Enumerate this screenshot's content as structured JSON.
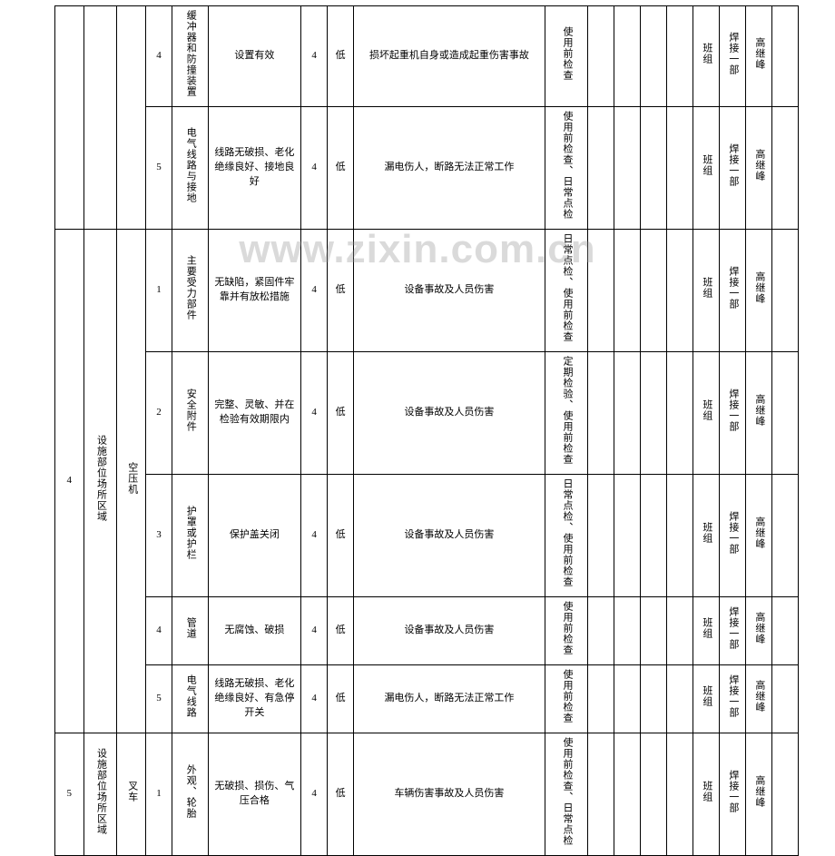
{
  "watermark": "www.zixin.com.cn",
  "rows": [
    {
      "c1": "",
      "c2": "",
      "c3": "",
      "c4": "4",
      "c5": "缓冲器和防撞装置",
      "c6": "设置有效",
      "c7": "4",
      "c8": "低",
      "c9": "损坏起重机自身或造成起重伤害事故",
      "c10": "使用前检查",
      "c11": "",
      "c12": "",
      "c13": "",
      "c14": "",
      "c15": "班组",
      "c16": "焊接一部",
      "c17": "高继峰",
      "c18": ""
    },
    {
      "c4": "5",
      "c5": "电气线路与接地",
      "c6": "线路无破损、老化绝缘良好、接地良好",
      "c7": "4",
      "c8": "低",
      "c9": "漏电伤人，断路无法正常工作",
      "c10": "使用前检查、日常点检",
      "c15": "班组",
      "c16": "焊接一部",
      "c17": "高继峰",
      "c18": ""
    },
    {
      "g1": "4",
      "g2": "设施部位场所区域",
      "g3": "空压机",
      "c4": "1",
      "c5": "主要受力部件",
      "c6": "无缺陷，紧固件牢靠并有放松措施",
      "c7": "4",
      "c8": "低",
      "c9": "设备事故及人员伤害",
      "c10": "日常点检、使用前检查",
      "c15": "班组",
      "c16": "焊接一部",
      "c17": "高继峰",
      "c18": ""
    },
    {
      "c4": "2",
      "c5": "安全附件",
      "c6": "完整、灵敏、并在检验有效期限内",
      "c7": "4",
      "c8": "低",
      "c9": "设备事故及人员伤害",
      "c10": "定期检验、使用前检查",
      "c15": "班组",
      "c16": "焊接一部",
      "c17": "高继峰",
      "c18": ""
    },
    {
      "c4": "3",
      "c5": "护罩或护栏",
      "c6": "保护盖关闭",
      "c7": "4",
      "c8": "低",
      "c9": "设备事故及人员伤害",
      "c10": "日常点检、使用前检查",
      "c15": "班组",
      "c16": "焊接一部",
      "c17": "高继峰",
      "c18": ""
    },
    {
      "c4": "4",
      "c5": "管道",
      "c6": "无腐蚀、破损",
      "c7": "4",
      "c8": "低",
      "c9": "设备事故及人员伤害",
      "c10": "使用前检查",
      "c15": "班组",
      "c16": "焊接一部",
      "c17": "高继峰",
      "c18": ""
    },
    {
      "c4": "5",
      "c5": "电气线路",
      "c6": "线路无破损、老化绝缘良好、有急停开关",
      "c7": "4",
      "c8": "低",
      "c9": "漏电伤人，断路无法正常工作",
      "c10": "使用前检查",
      "c15": "班组",
      "c16": "焊接一部",
      "c17": "高继峰",
      "c18": ""
    },
    {
      "g1": "5",
      "g2": "设施部位场所区域",
      "g3": "叉车",
      "c4": "1",
      "c5": "外观、轮胎",
      "c6": "无破损、损伤、气压合格",
      "c7": "4",
      "c8": "低",
      "c9": "车辆伤害事故及人员伤害",
      "c10": "使用前检查、日常点检",
      "c15": "班组",
      "c16": "焊接一部",
      "c17": "高继峰",
      "c18": ""
    }
  ]
}
